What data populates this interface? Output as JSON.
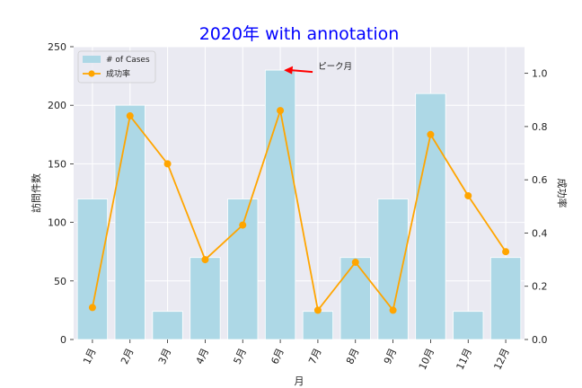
{
  "chart_data": {
    "type": "bar",
    "title": "2020年 with annotation",
    "xlabel": "月",
    "ylabel": "訪問件数",
    "ylabel_right": "成功率",
    "categories": [
      "1月",
      "2月",
      "3月",
      "4月",
      "5月",
      "6月",
      "7月",
      "8月",
      "9月",
      "10月",
      "11月",
      "12月"
    ],
    "series": [
      {
        "name": "# of Cases",
        "type": "bar",
        "axis": "left",
        "values": [
          120,
          200,
          24,
          70,
          120,
          230,
          24,
          70,
          120,
          210,
          24,
          70
        ]
      },
      {
        "name": "成功率",
        "type": "line",
        "axis": "right",
        "values": [
          0.12,
          0.84,
          0.66,
          0.3,
          0.43,
          0.86,
          0.11,
          0.29,
          0.11,
          0.77,
          0.54,
          0.33
        ]
      }
    ],
    "ylim": [
      0,
      250
    ],
    "yticks": [
      0,
      50,
      100,
      150,
      200,
      250
    ],
    "ylim_right": [
      0,
      1.1
    ],
    "yticks_right": [
      "0.0",
      "0.2",
      "0.4",
      "0.6",
      "0.8",
      "1.0"
    ],
    "annotation": {
      "text": "ピーク月",
      "category": "6月",
      "value": 230
    },
    "grid": true,
    "legend": "top-left",
    "colors": {
      "bar": "#add8e6",
      "line": "#ffa500",
      "title": "#0000ff",
      "arrow": "#ff0000",
      "plot_bg": "#eaeaf2",
      "grid": "#ffffff"
    }
  }
}
